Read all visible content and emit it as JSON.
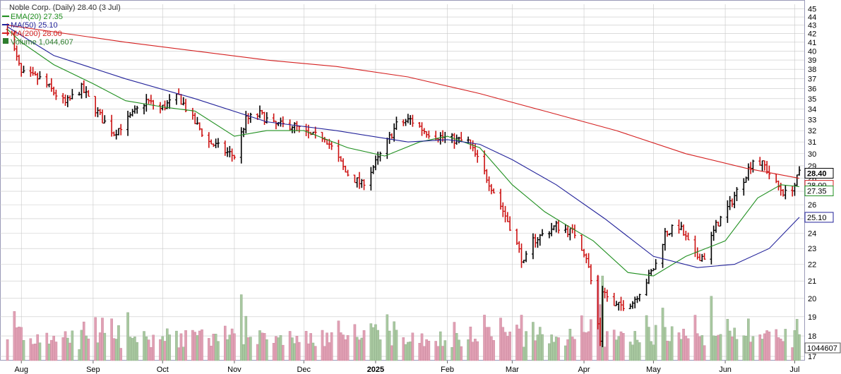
{
  "header": {
    "title": "Noble Corp. (Daily) 28.40 (3 Jul)"
  },
  "legend": [
    {
      "label": "EMA(20) 27.35",
      "color": "#1f8f1f"
    },
    {
      "label": "MA(50) 25.10",
      "color": "#22229a"
    },
    {
      "label": "MA(200) 28.00",
      "color": "#d42020"
    },
    {
      "label": "Volume 1,044,607",
      "color": "#2e7d2e"
    }
  ],
  "price_tags": {
    "last": "28.40",
    "ma200": "28.00",
    "ema20": "27.35",
    "ma50": "25.10",
    "volume": "1044607"
  },
  "colors": {
    "up": "#000000",
    "down": "#cc1111",
    "ema": "#1f8f1f",
    "ma50": "#22229a",
    "ma200": "#d42020",
    "vol_up": "#a8c8a0",
    "vol_down": "#e0a0b4",
    "grid": "#c8c8c8",
    "frame": "#9a9ab8"
  },
  "chart_data": {
    "type": "line",
    "title": "Noble Corp. (Daily) 28.40 (3 Jul)",
    "scale": "log",
    "ylim": [
      16.8,
      45.6
    ],
    "y_ticks": [
      17,
      18,
      19,
      20,
      21,
      22,
      23,
      24,
      25,
      26,
      27,
      28,
      29,
      30,
      31,
      32,
      33,
      34,
      35,
      36,
      37,
      38,
      39,
      40,
      41,
      42,
      43,
      44,
      45
    ],
    "x_ticks": [
      "Aug",
      "Sep",
      "Oct",
      "Nov",
      "Dec",
      "2025",
      "Feb",
      "Mar",
      "Apr",
      "May",
      "Jun",
      "Jul"
    ],
    "x_range": [
      "2024-07-24",
      "2025-07-03"
    ],
    "price_keypoints": [
      [
        "2024-07-26",
        42.5
      ],
      [
        "2024-08-01",
        37.5
      ],
      [
        "2024-08-09",
        37.0
      ],
      [
        "2024-08-20",
        34.5
      ],
      [
        "2024-08-27",
        36.0
      ],
      [
        "2024-09-05",
        33.0
      ],
      [
        "2024-09-10",
        31.8
      ],
      [
        "2024-09-16",
        33.0
      ],
      [
        "2024-09-24",
        34.8
      ],
      [
        "2024-09-30",
        34.0
      ],
      [
        "2024-10-08",
        35.2
      ],
      [
        "2024-10-14",
        33.0
      ],
      [
        "2024-10-21",
        31.0
      ],
      [
        "2024-10-28",
        30.2
      ],
      [
        "2024-11-01",
        29.8
      ],
      [
        "2024-11-06",
        33.0
      ],
      [
        "2024-11-12",
        33.5
      ],
      [
        "2024-11-18",
        32.5
      ],
      [
        "2024-11-26",
        32.5
      ],
      [
        "2024-12-04",
        31.5
      ],
      [
        "2024-12-10",
        31.5
      ],
      [
        "2024-12-19",
        28.5
      ],
      [
        "2024-12-26",
        27.5
      ],
      [
        "2025-01-02",
        29.5
      ],
      [
        "2025-01-10",
        32.5
      ],
      [
        "2025-01-16",
        33.0
      ],
      [
        "2025-01-22",
        32.0
      ],
      [
        "2025-01-28",
        31.5
      ],
      [
        "2025-02-04",
        31.2
      ],
      [
        "2025-02-10",
        31.0
      ],
      [
        "2025-02-14",
        29.5
      ],
      [
        "2025-02-21",
        27.0
      ],
      [
        "2025-02-28",
        24.5
      ],
      [
        "2025-03-06",
        22.0
      ],
      [
        "2025-03-10",
        23.5
      ],
      [
        "2025-03-20",
        24.5
      ],
      [
        "2025-03-28",
        24.0
      ],
      [
        "2025-04-02",
        22.5
      ],
      [
        "2025-04-04",
        21.0
      ],
      [
        "2025-04-08",
        17.8
      ],
      [
        "2025-04-09",
        20.5
      ],
      [
        "2025-04-14",
        19.5
      ],
      [
        "2025-04-22",
        19.8
      ],
      [
        "2025-04-28",
        21.0
      ],
      [
        "2025-05-02",
        22.0
      ],
      [
        "2025-05-06",
        24.0
      ],
      [
        "2025-05-12",
        24.5
      ],
      [
        "2025-05-19",
        22.5
      ],
      [
        "2025-05-23",
        22.5
      ],
      [
        "2025-05-28",
        24.5
      ],
      [
        "2025-06-03",
        26.0
      ],
      [
        "2025-06-09",
        28.0
      ],
      [
        "2025-06-13",
        29.5
      ],
      [
        "2025-06-18",
        29.0
      ],
      [
        "2025-06-23",
        27.5
      ],
      [
        "2025-06-27",
        26.8
      ],
      [
        "2025-07-01",
        27.5
      ],
      [
        "2025-07-03",
        28.4
      ]
    ],
    "series": [
      {
        "name": "EMA(20) 27.35",
        "points": [
          [
            "2024-07-26",
            42.5
          ],
          [
            "2024-08-01",
            41.0
          ],
          [
            "2024-08-15",
            38.5
          ],
          [
            "2024-09-01",
            36.5
          ],
          [
            "2024-09-15",
            34.8
          ],
          [
            "2024-10-01",
            34.2
          ],
          [
            "2024-10-15",
            33.8
          ],
          [
            "2024-11-01",
            31.5
          ],
          [
            "2024-11-15",
            32.0
          ],
          [
            "2024-12-01",
            32.0
          ],
          [
            "2024-12-20",
            30.5
          ],
          [
            "2025-01-05",
            29.8
          ],
          [
            "2025-01-20",
            31.0
          ],
          [
            "2025-02-01",
            31.5
          ],
          [
            "2025-02-15",
            30.5
          ],
          [
            "2025-03-01",
            27.5
          ],
          [
            "2025-03-15",
            25.5
          ],
          [
            "2025-03-25",
            24.5
          ],
          [
            "2025-04-05",
            23.5
          ],
          [
            "2025-04-20",
            21.5
          ],
          [
            "2025-05-01",
            21.3
          ],
          [
            "2025-05-15",
            22.5
          ],
          [
            "2025-06-01",
            23.5
          ],
          [
            "2025-06-15",
            26.5
          ],
          [
            "2025-06-25",
            27.5
          ],
          [
            "2025-07-03",
            27.35
          ]
        ]
      },
      {
        "name": "MA(50) 25.10",
        "points": [
          [
            "2024-07-26",
            42.8
          ],
          [
            "2024-08-15",
            39.5
          ],
          [
            "2024-09-15",
            37.0
          ],
          [
            "2024-10-15",
            35.0
          ],
          [
            "2024-11-15",
            32.8
          ],
          [
            "2024-12-15",
            32.0
          ],
          [
            "2025-01-15",
            31.0
          ],
          [
            "2025-02-01",
            31.2
          ],
          [
            "2025-02-15",
            30.8
          ],
          [
            "2025-03-01",
            29.5
          ],
          [
            "2025-03-20",
            27.5
          ],
          [
            "2025-04-10",
            25.0
          ],
          [
            "2025-05-01",
            22.5
          ],
          [
            "2025-05-20",
            21.8
          ],
          [
            "2025-06-05",
            22.0
          ],
          [
            "2025-06-20",
            23.0
          ],
          [
            "2025-07-03",
            25.1
          ]
        ]
      },
      {
        "name": "MA(200) 28.00",
        "points": [
          [
            "2024-07-26",
            43.0
          ],
          [
            "2024-09-15",
            41.0
          ],
          [
            "2024-11-15",
            39.0
          ],
          [
            "2024-12-15",
            38.3
          ],
          [
            "2025-01-15",
            37.2
          ],
          [
            "2025-02-15",
            35.5
          ],
          [
            "2025-03-15",
            33.8
          ],
          [
            "2025-04-15",
            32.0
          ],
          [
            "2025-05-15",
            30.0
          ],
          [
            "2025-06-10",
            28.8
          ],
          [
            "2025-07-03",
            28.0
          ]
        ]
      }
    ]
  }
}
